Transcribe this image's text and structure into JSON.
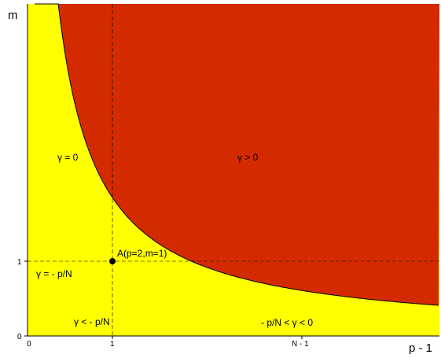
{
  "axes": {
    "y_label": "m",
    "x_label": "p - 1",
    "x_ticks": [
      {
        "value": 0,
        "label": "0"
      },
      {
        "value": 1,
        "label": "1"
      },
      {
        "value": 3.5,
        "label": "N - 1"
      }
    ],
    "y_ticks": [
      {
        "value": 0,
        "label": "0"
      },
      {
        "value": 1,
        "label": "1"
      }
    ]
  },
  "region_labels": {
    "gamma_zero": "γ  = 0",
    "gamma_positive": "γ  > 0",
    "gamma_eq": "γ = - p/N",
    "gamma_less": "γ < - p/N",
    "gamma_between": "- p/N < γ < 0"
  },
  "point": {
    "label": "A(p=2,m=1)",
    "x": 1,
    "y": 1
  },
  "colors": {
    "gamma_positive": "#d42a00",
    "gamma_between": "#ffff00",
    "gamma_less": "#ff6600",
    "outline": "#000000"
  }
}
